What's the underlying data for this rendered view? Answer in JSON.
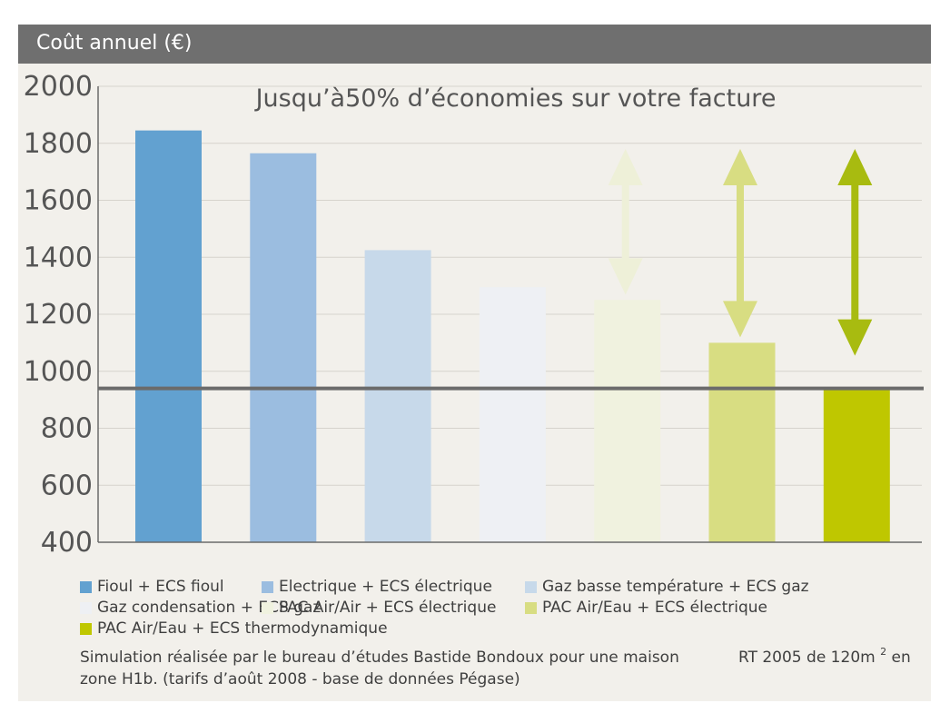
{
  "header": {
    "title": "Coût annuel (€)"
  },
  "chart_data": {
    "type": "bar",
    "title": "Jusqu’à50% d’économies sur votre facture",
    "ylim": [
      400,
      2000
    ],
    "yticks": [
      "2000",
      "1800",
      "1600",
      "1400",
      "1200",
      "1000",
      "800",
      "600",
      "400"
    ],
    "grid": true,
    "reference_line": 940,
    "categories": [
      "Fioul + ECS fioul",
      "Electrique + ECS électrique",
      "Gaz basse température + ECS gaz",
      "Gaz condensation + ECS gaz",
      "PAC Air/Air + ECS électrique",
      "PAC Air/Eau + ECS électrique",
      "PAC Air/Eau + ECS thermodynamique"
    ],
    "values": [
      1845,
      1765,
      1425,
      1295,
      1250,
      1100,
      935
    ],
    "colors": [
      "#62a1d0",
      "#9bbde0",
      "#c7d9ea",
      "#eef0f4",
      "#f0f2df",
      "#d8dd82",
      "#bfc700"
    ],
    "arrows": [
      {
        "category_index": 4,
        "color": "#eef0d8"
      },
      {
        "category_index": 5,
        "color": "#d8dd82"
      },
      {
        "category_index": 6,
        "color": "#a8bb10"
      }
    ]
  },
  "legend": {
    "rows": [
      [
        {
          "label": "Fioul + ECS fioul",
          "color": "#62a1d0"
        },
        {
          "label": "Electrique + ECS électrique",
          "color": "#9bbde0"
        },
        {
          "label": "Gaz basse température + ECS gaz",
          "color": "#c7d9ea"
        }
      ],
      [
        {
          "label": "Gaz condensation + ECS gaz",
          "color": "#eef0f4"
        },
        {
          "label": "PAC Air/Air + ECS électrique",
          "color": "#f0f2df"
        },
        {
          "label": "PAC Air/Eau + ECS électrique",
          "color": "#d8dd82"
        }
      ],
      [
        {
          "label": "PAC Air/Eau + ECS thermodynamique",
          "color": "#bfc700"
        }
      ]
    ]
  },
  "note": {
    "line1": "Simulation réalisée par le bureau d’études Bastide Bondoux pour une maison",
    "line1_right": "RT 2005 de 120m",
    "line1_sup": "2",
    "line1_end": "en",
    "line2": "zone H1b. (tarifs d’août 2008 - base de données Pégase)"
  }
}
